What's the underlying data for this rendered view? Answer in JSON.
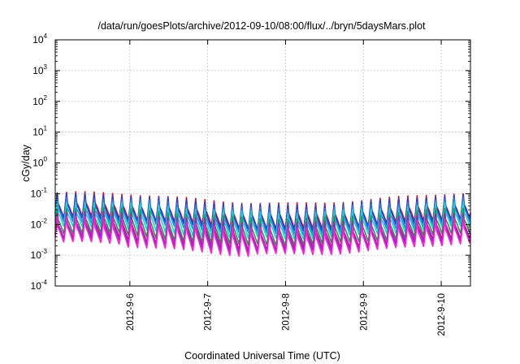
{
  "chart_data": {
    "type": "line",
    "title": "/data/run/goesPlots/archive/2012-09-10/08:00/flux/../bryn/5daysMars.plot",
    "xlabel": "Coordinated Universal Time (UTC)",
    "ylabel": "cGy/day",
    "y_scale": "log",
    "ylim": [
      0.0001,
      10000
    ],
    "y_ticks": [
      {
        "base": "10",
        "exp": "-4"
      },
      {
        "base": "10",
        "exp": "-3"
      },
      {
        "base": "10",
        "exp": "-2"
      },
      {
        "base": "10",
        "exp": "-1"
      },
      {
        "base": "10",
        "exp": "0"
      },
      {
        "base": "10",
        "exp": "1"
      },
      {
        "base": "10",
        "exp": "2"
      },
      {
        "base": "10",
        "exp": "3"
      },
      {
        "base": "10",
        "exp": "4"
      }
    ],
    "xlim": [
      "2012-09-05 01:00",
      "2012-09-10 09:00"
    ],
    "x_ticks": [
      "2012-9-6",
      "2012-9-7",
      "2012-9-8",
      "2012-9-9",
      "2012-9-10"
    ],
    "grid": true,
    "series_shape": "sawtooth (repeated sharp peaks decaying over each cycle)",
    "cycles_per_day": 8.5,
    "series": [
      {
        "color": "#d0132f",
        "peak": 0.072,
        "trough": 0.011
      },
      {
        "color": "#1f3fd8",
        "peak": 0.063,
        "trough": 0.0095
      },
      {
        "color": "#2f7fe8",
        "peak": 0.048,
        "trough": 0.0075
      },
      {
        "color": "#11d7d7",
        "peak": 0.036,
        "trough": 0.0057
      },
      {
        "color": "#1a9a4a",
        "peak": 0.023,
        "trough": 0.0035
      },
      {
        "color": "#c51a8a",
        "peak": 0.0165,
        "trough": 0.0025
      },
      {
        "color": "#8a2ad2",
        "peak": 0.0135,
        "trough": 0.0021
      },
      {
        "color": "#ff1ad9",
        "peak": 0.0115,
        "trough": 0.00165
      }
    ]
  }
}
